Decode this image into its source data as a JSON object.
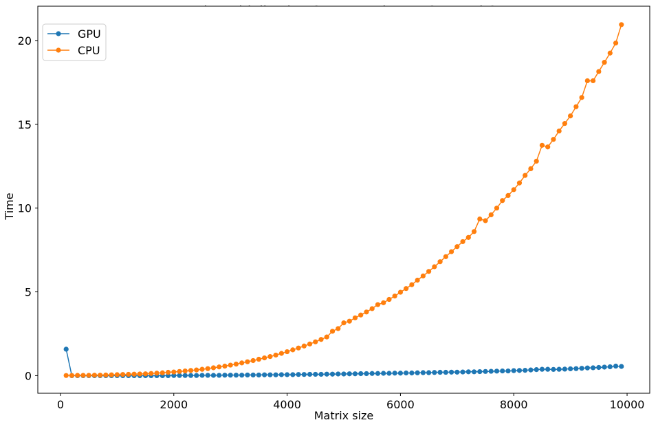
{
  "chart_data": {
    "type": "line",
    "title": "Matrix Multiplication Compute Times - GPU and CPU",
    "xlabel": "Matrix size",
    "ylabel": "Time",
    "xlim": [
      -400,
      10400
    ],
    "ylim": [
      -1.05,
      22.05
    ],
    "xticks": [
      0,
      2000,
      4000,
      6000,
      8000,
      10000
    ],
    "yticks": [
      0,
      5,
      10,
      15,
      20
    ],
    "grid": false,
    "legend_position": "top-left",
    "x": [
      100,
      200,
      300,
      400,
      500,
      600,
      700,
      800,
      900,
      1000,
      1100,
      1200,
      1300,
      1400,
      1500,
      1600,
      1700,
      1800,
      1900,
      2000,
      2100,
      2200,
      2300,
      2400,
      2500,
      2600,
      2700,
      2800,
      2900,
      3000,
      3100,
      3200,
      3300,
      3400,
      3500,
      3600,
      3700,
      3800,
      3900,
      4000,
      4100,
      4200,
      4300,
      4400,
      4500,
      4600,
      4700,
      4800,
      4900,
      5000,
      5100,
      5200,
      5300,
      5400,
      5500,
      5600,
      5700,
      5800,
      5900,
      6000,
      6100,
      6200,
      6300,
      6400,
      6500,
      6600,
      6700,
      6800,
      6900,
      7000,
      7100,
      7200,
      7300,
      7400,
      7500,
      7600,
      7700,
      7800,
      7900,
      8000,
      8100,
      8200,
      8300,
      8400,
      8500,
      8600,
      8700,
      8800,
      8900,
      9000,
      9100,
      9200,
      9300,
      9400,
      9500,
      9600,
      9700,
      9800,
      9900
    ],
    "series": [
      {
        "name": "GPU",
        "color": "#1f77b4",
        "values": [
          1.58,
          0.0,
          0.0,
          0.0,
          0.0,
          0.0,
          0.0,
          0.0,
          0.0,
          0.0,
          0.0,
          0.0,
          0.0,
          0.0,
          0.0,
          0.0,
          0.0,
          0.0,
          0.0,
          0.01,
          0.01,
          0.01,
          0.01,
          0.01,
          0.02,
          0.02,
          0.02,
          0.02,
          0.03,
          0.03,
          0.03,
          0.03,
          0.04,
          0.04,
          0.04,
          0.05,
          0.05,
          0.05,
          0.06,
          0.06,
          0.06,
          0.07,
          0.07,
          0.08,
          0.08,
          0.08,
          0.09,
          0.09,
          0.1,
          0.1,
          0.11,
          0.11,
          0.12,
          0.12,
          0.13,
          0.13,
          0.14,
          0.14,
          0.15,
          0.15,
          0.16,
          0.16,
          0.17,
          0.18,
          0.18,
          0.19,
          0.2,
          0.2,
          0.21,
          0.21,
          0.22,
          0.23,
          0.23,
          0.24,
          0.25,
          0.26,
          0.27,
          0.28,
          0.28,
          0.3,
          0.31,
          0.32,
          0.34,
          0.36,
          0.38,
          0.38,
          0.37,
          0.38,
          0.39,
          0.41,
          0.42,
          0.44,
          0.46,
          0.47,
          0.49,
          0.51,
          0.53,
          0.57,
          0.55
        ]
      },
      {
        "name": "CPU",
        "color": "#ff7f0e",
        "values": [
          0.01,
          0.01,
          0.02,
          0.02,
          0.02,
          0.03,
          0.03,
          0.04,
          0.05,
          0.06,
          0.07,
          0.08,
          0.09,
          0.1,
          0.11,
          0.13,
          0.15,
          0.17,
          0.2,
          0.22,
          0.25,
          0.28,
          0.31,
          0.34,
          0.38,
          0.42,
          0.47,
          0.52,
          0.57,
          0.63,
          0.69,
          0.76,
          0.83,
          0.9,
          0.98,
          1.06,
          1.14,
          1.23,
          1.33,
          1.43,
          1.54,
          1.65,
          1.77,
          1.89,
          2.02,
          2.16,
          2.31,
          2.65,
          2.81,
          3.15,
          3.25,
          3.45,
          3.62,
          3.8,
          4.0,
          4.24,
          4.35,
          4.55,
          4.75,
          4.98,
          5.2,
          5.43,
          5.7,
          5.95,
          6.22,
          6.5,
          6.8,
          7.1,
          7.4,
          7.7,
          8.0,
          8.25,
          8.6,
          9.35,
          9.25,
          9.6,
          10.0,
          10.45,
          10.75,
          11.1,
          11.5,
          11.95,
          12.35,
          12.8,
          13.75,
          13.65,
          14.1,
          14.6,
          15.05,
          15.5,
          16.05,
          16.6,
          17.6,
          17.6,
          18.15,
          18.7,
          19.25,
          19.85,
          20.95
        ]
      }
    ]
  }
}
